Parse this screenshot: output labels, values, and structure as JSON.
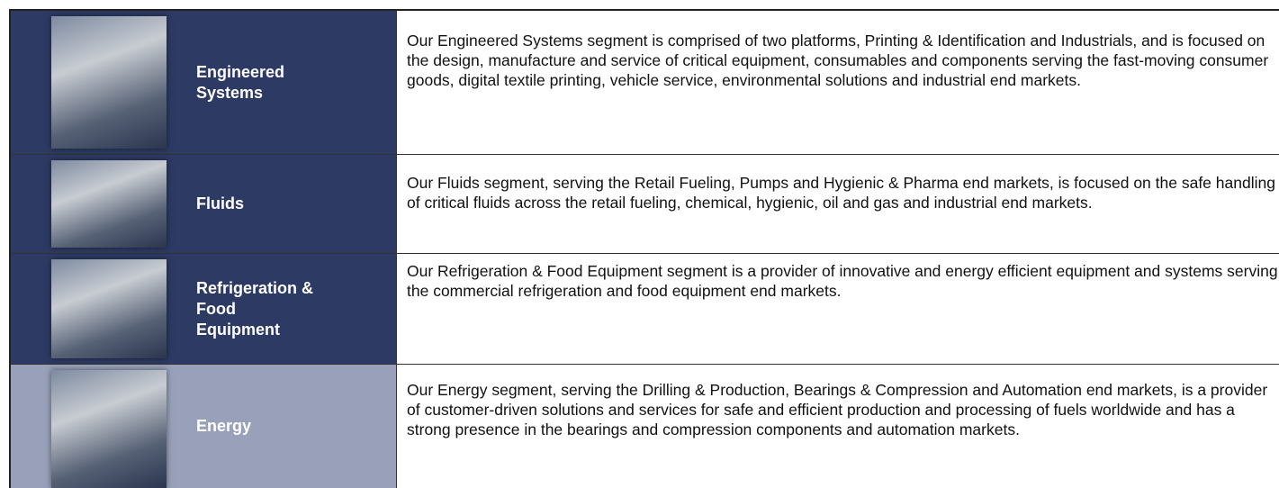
{
  "table": {
    "rows": [
      {
        "name": "Engineered\nSystems",
        "description": "Our Engineered Systems segment is comprised of two platforms, Printing & Identification and Industrials, and is focused on the design, manufacture and service of critical equipment, consumables and components serving the fast-moving consumer goods, digital textile printing, vehicle service, environmental solutions and industrial end markets."
      },
      {
        "name": "Fluids",
        "description": "Our Fluids segment, serving the Retail Fueling, Pumps and Hygienic & Pharma end markets, is focused on the safe handling of critical fluids across the retail fueling, chemical, hygienic, oil and gas and industrial end markets."
      },
      {
        "name": "Refrigeration &\nFood\nEquipment",
        "description": "Our Refrigeration & Food Equipment segment is a provider of innovative and energy efficient equipment and systems serving the commercial refrigeration and food equipment end markets."
      },
      {
        "name": "Energy",
        "description": "Our Energy segment, serving the Drilling & Production, Bearings & Compression and Automation end markets, is a provider of customer-driven solutions and services for safe and efficient production and processing of fuels worldwide and has a strong presence in the bearings and compression components and automation markets."
      }
    ]
  }
}
